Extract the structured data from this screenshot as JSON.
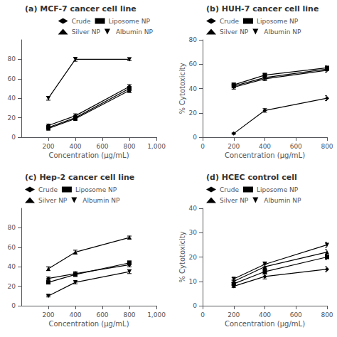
{
  "chart_data": [
    {
      "type": "line",
      "title": "(a) MCF-7 cancer cell line",
      "x_label": "Concentration (μg/mL)",
      "x": [
        200,
        400,
        800
      ],
      "series": [
        {
          "name": "Crude",
          "color": "#000000",
          "marker": "diamond",
          "values": [
            12,
            22,
            52
          ],
          "errors": [
            1.5,
            2,
            2
          ]
        },
        {
          "name": "Liposome NP",
          "color": "#000000",
          "marker": "square",
          "values": [
            10,
            20,
            50
          ],
          "errors": [
            1,
            1.5,
            2
          ]
        },
        {
          "name": "Silver NP",
          "color": "#000000",
          "marker": "triangle-up",
          "values": [
            9,
            19,
            48
          ],
          "errors": [
            1,
            1.5,
            2
          ]
        },
        {
          "name": "Albumin NP",
          "color": "#000000",
          "marker": "triangle-down",
          "values": [
            40,
            80,
            80
          ],
          "errors": [
            2,
            2,
            1.5
          ]
        }
      ],
      "xlim": [
        0,
        1000
      ],
      "ylim": [
        0,
        100
      ],
      "xticks": [
        200,
        400,
        600,
        800,
        1000
      ],
      "yticks": [
        0,
        20,
        40,
        60,
        80
      ],
      "grid": false,
      "legend": "upper right"
    },
    {
      "type": "line",
      "title": "(b) HUH-7 cancer cell line",
      "x_label": "Concentration (μg/mL)",
      "y_label": "% Cytotoxicity",
      "x": [
        200,
        400,
        800
      ],
      "series": [
        {
          "name": "Crude",
          "color": "#000000",
          "marker": "diamond",
          "values": [
            3,
            22,
            32
          ],
          "errors": [
            0.5,
            1.5,
            2
          ]
        },
        {
          "name": "Liposome NP",
          "color": "#000000",
          "marker": "square",
          "values": [
            43,
            51,
            57
          ],
          "errors": [
            1.5,
            1.5,
            1.5
          ]
        },
        {
          "name": "Silver NP",
          "color": "#000000",
          "marker": "triangle-up",
          "values": [
            42,
            49,
            56
          ],
          "errors": [
            1.5,
            1.5,
            1.5
          ]
        },
        {
          "name": "Albumin NP",
          "color": "#000000",
          "marker": "triangle-down",
          "values": [
            41,
            48,
            55
          ],
          "errors": [
            1.5,
            1.5,
            1.5
          ]
        }
      ],
      "xlim": [
        0,
        800
      ],
      "ylim": [
        0,
        80
      ],
      "xticks": [
        0,
        200,
        400,
        600,
        800
      ],
      "yticks": [
        0,
        20,
        40,
        60,
        80
      ],
      "grid": false,
      "legend": "upper left"
    },
    {
      "type": "line",
      "title": "(c) Hep-2 cancer cell line",
      "x_label": "Concentration (μg/mL)",
      "x": [
        200,
        400,
        800
      ],
      "series": [
        {
          "name": "Crude",
          "color": "#000000",
          "marker": "diamond",
          "values": [
            28,
            33,
            42
          ],
          "errors": [
            1.5,
            2,
            2
          ]
        },
        {
          "name": "Liposome NP",
          "color": "#000000",
          "marker": "square",
          "values": [
            24,
            32,
            44
          ],
          "errors": [
            1.5,
            2,
            2
          ]
        },
        {
          "name": "Silver NP",
          "color": "#000000",
          "marker": "triangle-up",
          "values": [
            38,
            55,
            70
          ],
          "errors": [
            2,
            2,
            1.5
          ]
        },
        {
          "name": "Albumin NP",
          "color": "#000000",
          "marker": "triangle-down",
          "values": [
            10,
            24,
            35
          ],
          "errors": [
            1,
            1.5,
            2
          ]
        }
      ],
      "xlim": [
        0,
        1000
      ],
      "ylim": [
        0,
        100
      ],
      "xticks": [
        200,
        400,
        600,
        800,
        1000
      ],
      "yticks": [
        0,
        20,
        40,
        60,
        80
      ],
      "grid": false,
      "legend": "upper left"
    },
    {
      "type": "line",
      "title": "(d) HCEC control cell",
      "x_label": "Concentration (μg/mL)",
      "y_label": "% Cytotoxicity",
      "x": [
        200,
        400,
        800
      ],
      "series": [
        {
          "name": "Crude",
          "color": "#000000",
          "marker": "diamond",
          "values": [
            8,
            12,
            15
          ],
          "errors": [
            0.5,
            1,
            1
          ]
        },
        {
          "name": "Liposome NP",
          "color": "#000000",
          "marker": "square",
          "values": [
            9,
            14,
            20
          ],
          "errors": [
            0.5,
            1,
            1
          ]
        },
        {
          "name": "Silver NP",
          "color": "#000000",
          "marker": "triangle-up",
          "values": [
            10,
            16,
            22
          ],
          "errors": [
            0.5,
            1,
            1
          ]
        },
        {
          "name": "Albumin NP",
          "color": "#000000",
          "marker": "triangle-down",
          "values": [
            11,
            17,
            25
          ],
          "errors": [
            0.5,
            1,
            1
          ]
        }
      ],
      "xlim": [
        0,
        800
      ],
      "ylim": [
        0,
        40
      ],
      "xticks": [
        0,
        200,
        400,
        600,
        800
      ],
      "yticks": [
        0,
        10,
        20,
        30,
        40
      ],
      "grid": false,
      "legend": "upper left"
    }
  ]
}
